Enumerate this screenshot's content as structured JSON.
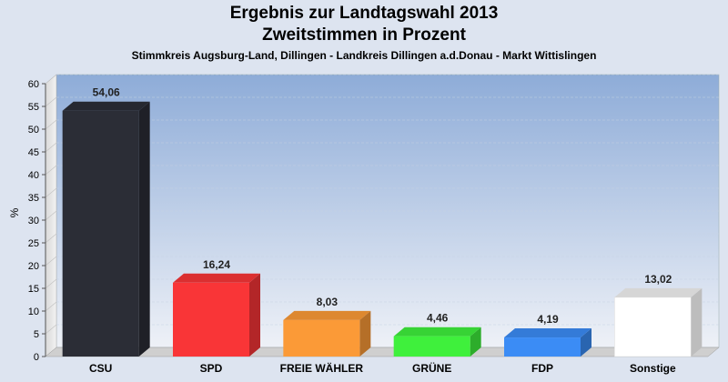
{
  "header": {
    "title": "Ergebnis zur Landtagswahl 2013",
    "subtitle": "Zweitstimmen in Prozent",
    "caption": "Stimmkreis Augsburg-Land, Dillingen - Landkreis Dillingen a.d.Donau - Markt Wittislingen"
  },
  "chart_data": {
    "type": "bar",
    "title": "Ergebnis zur Landtagswahl 2013",
    "subtitle": "Zweitstimmen in Prozent",
    "ylabel": "%",
    "xlabel": "",
    "ylim": [
      0,
      60
    ],
    "yticks": [
      0,
      5,
      10,
      15,
      20,
      25,
      30,
      35,
      40,
      45,
      50,
      55,
      60
    ],
    "grid": true,
    "categories": [
      "CSU",
      "SPD",
      "FREIE WÄHLER",
      "GRÜNE",
      "FDP",
      "Sonstige"
    ],
    "values": [
      54.06,
      16.24,
      8.03,
      4.46,
      4.19,
      13.02
    ],
    "labels": [
      "54,06",
      "16,24",
      "8,03",
      "4,46",
      "4,19",
      "13,02"
    ],
    "colors": [
      "#2b2d36",
      "#f93537",
      "#fb9a37",
      "#3ff03c",
      "#3b8cf5",
      "#ffffff"
    ]
  }
}
